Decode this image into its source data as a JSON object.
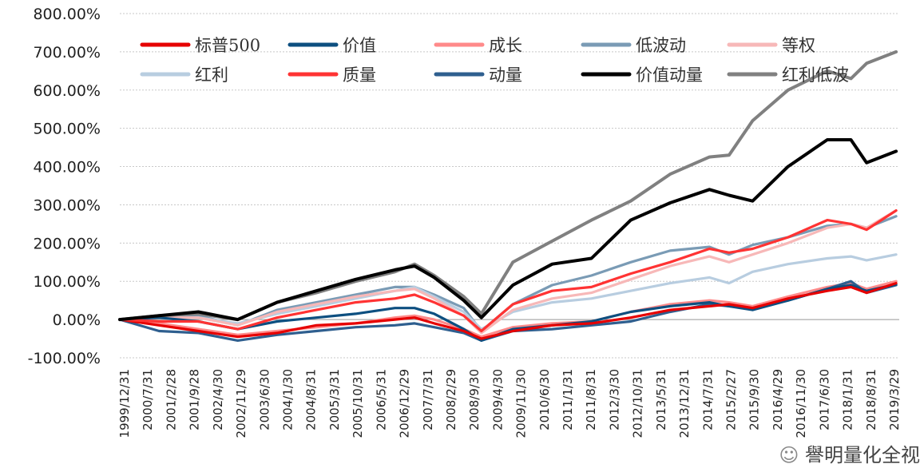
{
  "watermark": {
    "text": "譽明量化全视",
    "icon": "wechat-icon"
  },
  "chart_data": {
    "type": "line",
    "title": "",
    "xlabel": "",
    "ylabel": "",
    "ylim": [
      -100,
      800
    ],
    "yticks": [
      -100,
      0,
      100,
      200,
      300,
      400,
      500,
      600,
      700,
      800
    ],
    "ytick_labels": [
      "-100.00%",
      "0.00%",
      "100.00%",
      "200.00%",
      "300.00%",
      "400.00%",
      "500.00%",
      "600.00%",
      "700.00%",
      "800.00%"
    ],
    "grid": "horizontal",
    "legend_position": "top-left",
    "x_tick_labels": [
      "1999/12/31",
      "2000/7/31",
      "2001/2/28",
      "2001/9/28",
      "2002/4/30",
      "2002/11/29",
      "2003/6/30",
      "2004/1/30",
      "2004/8/31",
      "2005/3/31",
      "2005/10/31",
      "2006/5/31",
      "2006/12/29",
      "2007/7/31",
      "2008/2/29",
      "2008/9/30",
      "2009/4/30",
      "2009/11/30",
      "2010/6/30",
      "2011/1/31",
      "2011/8/31",
      "2012/3/30",
      "2012/10/31",
      "2013/5/31",
      "2013/12/31",
      "2014/7/31",
      "2015/2/27",
      "2015/9/30",
      "2016/4/29",
      "2016/11/30",
      "2017/6/30",
      "2018/1/31",
      "2018/8/31",
      "2019/3/29"
    ],
    "x_dates": [
      2000.0,
      2001.0,
      2002.0,
      2003.0,
      2004.0,
      2005.0,
      2006.0,
      2007.0,
      2007.5,
      2008.0,
      2008.75,
      2009.2,
      2010.0,
      2011.0,
      2012.0,
      2013.0,
      2014.0,
      2015.0,
      2015.5,
      2016.1,
      2017.0,
      2018.0,
      2018.6,
      2019.0,
      2019.75
    ],
    "series": [
      {
        "name": "标普500",
        "color": "#e60000",
        "values": [
          0,
          -15,
          -30,
          -45,
          -35,
          -15,
          -10,
          0,
          5,
          -10,
          -30,
          -50,
          -30,
          -15,
          -10,
          5,
          25,
          35,
          40,
          30,
          55,
          75,
          85,
          70,
          95
        ]
      },
      {
        "name": "价值",
        "color": "#0d4f80",
        "values": [
          0,
          5,
          -5,
          -25,
          -5,
          5,
          15,
          30,
          30,
          15,
          -25,
          -55,
          -25,
          -15,
          -5,
          20,
          35,
          45,
          35,
          25,
          50,
          80,
          90,
          75,
          92
        ]
      },
      {
        "name": "成长",
        "color": "#ff8a8a",
        "values": [
          0,
          -10,
          -25,
          -40,
          -30,
          -20,
          -10,
          5,
          10,
          0,
          -25,
          -45,
          -20,
          -10,
          -5,
          20,
          40,
          50,
          45,
          35,
          60,
          85,
          95,
          80,
          100
        ]
      },
      {
        "name": "低波动",
        "color": "#7a9bb5",
        "values": [
          0,
          10,
          10,
          -15,
          25,
          45,
          65,
          85,
          85,
          65,
          30,
          -30,
          40,
          90,
          115,
          150,
          180,
          190,
          170,
          195,
          215,
          245,
          250,
          240,
          270
        ]
      },
      {
        "name": "等权",
        "color": "#f7b8b8",
        "values": [
          0,
          5,
          5,
          -15,
          20,
          40,
          60,
          75,
          80,
          55,
          10,
          -35,
          25,
          55,
          70,
          105,
          140,
          165,
          150,
          170,
          200,
          240,
          250,
          240,
          285
        ]
      },
      {
        "name": "红利",
        "color": "#b8cde0",
        "values": [
          0,
          5,
          5,
          -10,
          15,
          35,
          55,
          75,
          85,
          60,
          20,
          -25,
          20,
          45,
          55,
          75,
          95,
          110,
          95,
          125,
          145,
          160,
          165,
          155,
          170
        ]
      },
      {
        "name": "质量",
        "color": "#ff3333",
        "values": [
          0,
          -5,
          -5,
          -25,
          5,
          25,
          45,
          55,
          65,
          45,
          10,
          -30,
          40,
          75,
          85,
          120,
          150,
          185,
          175,
          185,
          215,
          260,
          250,
          235,
          285
        ]
      },
      {
        "name": "动量",
        "color": "#2f5f8f",
        "values": [
          0,
          -30,
          -35,
          -55,
          -40,
          -30,
          -20,
          -15,
          -10,
          -20,
          -35,
          -55,
          -30,
          -25,
          -15,
          -5,
          20,
          40,
          35,
          30,
          50,
          80,
          100,
          70,
          90
        ]
      },
      {
        "name": "价值动量",
        "color": "#000000",
        "values": [
          0,
          10,
          20,
          0,
          45,
          75,
          105,
          130,
          140,
          110,
          50,
          5,
          90,
          145,
          160,
          260,
          305,
          340,
          325,
          310,
          400,
          470,
          470,
          410,
          440
        ]
      },
      {
        "name": "红利低波",
        "color": "#808080",
        "values": [
          0,
          10,
          15,
          0,
          45,
          70,
          100,
          125,
          145,
          115,
          60,
          15,
          150,
          205,
          260,
          310,
          380,
          425,
          430,
          520,
          600,
          650,
          630,
          670,
          700
        ]
      }
    ]
  }
}
